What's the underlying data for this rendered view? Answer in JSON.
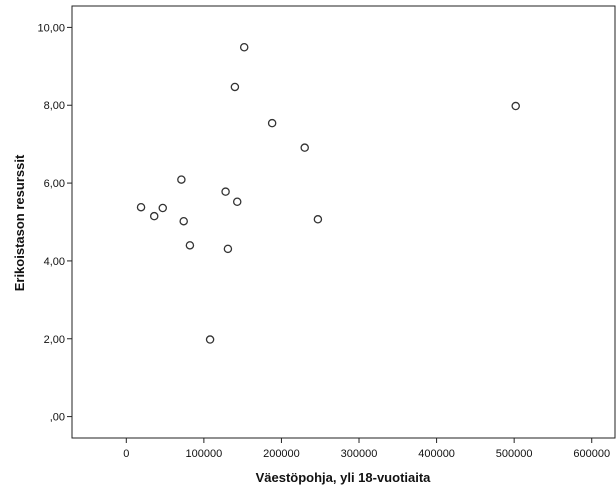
{
  "chart_data": {
    "type": "scatter",
    "title": "",
    "xlabel": "Väestöpohja, yli 18-vuotiaita",
    "ylabel": "Erikoistason resurssit",
    "xlim": [
      -70000,
      630000
    ],
    "ylim": [
      -0.55,
      10.55
    ],
    "x_ticks": [
      {
        "value": 0,
        "label": "0"
      },
      {
        "value": 100000,
        "label": "100000"
      },
      {
        "value": 200000,
        "label": "200000"
      },
      {
        "value": 300000,
        "label": "300000"
      },
      {
        "value": 400000,
        "label": "400000"
      },
      {
        "value": 500000,
        "label": "500000"
      },
      {
        "value": 600000,
        "label": "600000"
      }
    ],
    "y_ticks": [
      {
        "value": 0,
        "label": ",00"
      },
      {
        "value": 2,
        "label": "2,00"
      },
      {
        "value": 4,
        "label": "4,00"
      },
      {
        "value": 6,
        "label": "6,00"
      },
      {
        "value": 8,
        "label": "8,00"
      },
      {
        "value": 10,
        "label": "10,00"
      }
    ],
    "grid": false,
    "legend": "none",
    "marker": "hollow-circle",
    "marker_color": "#333333",
    "points": [
      {
        "x": 19000,
        "y": 5.38
      },
      {
        "x": 36000,
        "y": 5.15
      },
      {
        "x": 47000,
        "y": 5.36
      },
      {
        "x": 71000,
        "y": 6.09
      },
      {
        "x": 74000,
        "y": 5.02
      },
      {
        "x": 82000,
        "y": 4.4
      },
      {
        "x": 108000,
        "y": 1.98
      },
      {
        "x": 128000,
        "y": 5.78
      },
      {
        "x": 131000,
        "y": 4.31
      },
      {
        "x": 140000,
        "y": 8.47
      },
      {
        "x": 143000,
        "y": 5.52
      },
      {
        "x": 152000,
        "y": 9.49
      },
      {
        "x": 188000,
        "y": 7.54
      },
      {
        "x": 230000,
        "y": 6.91
      },
      {
        "x": 247000,
        "y": 5.07
      },
      {
        "x": 502000,
        "y": 7.98
      }
    ]
  }
}
